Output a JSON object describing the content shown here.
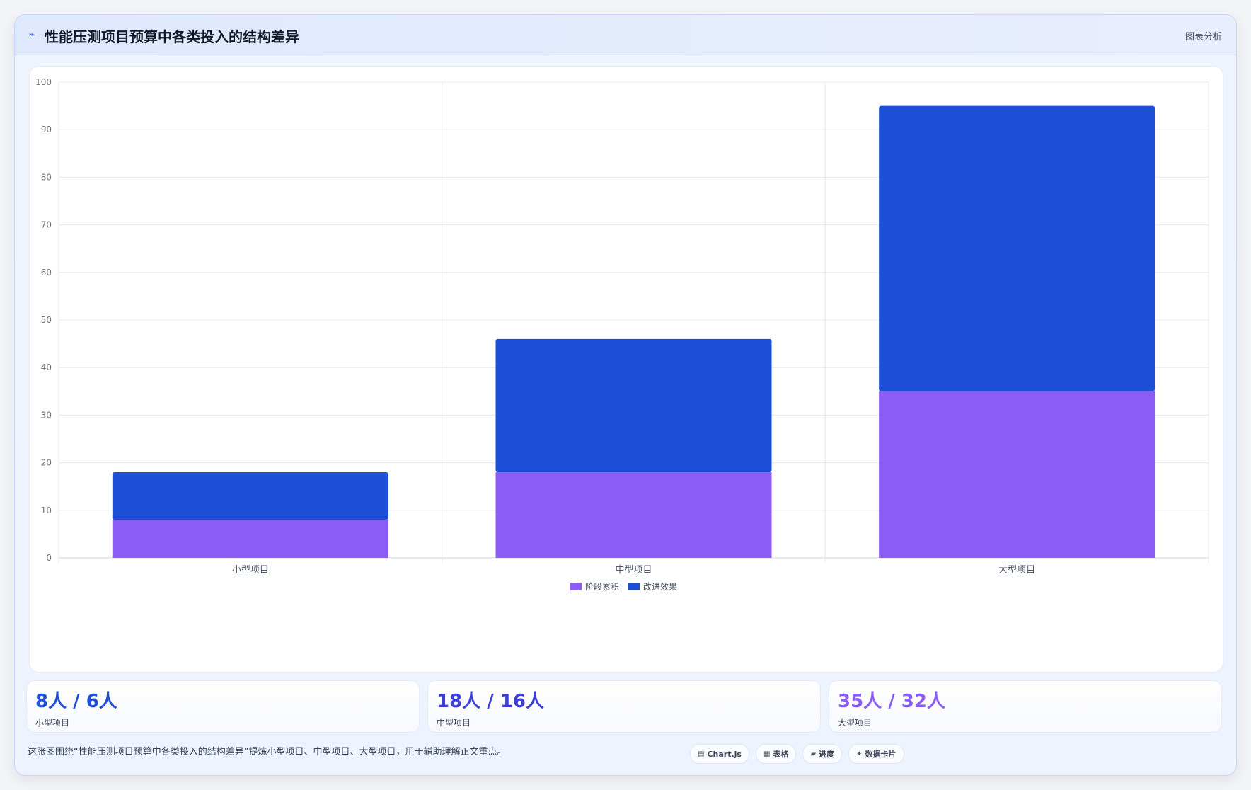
{
  "header": {
    "icon": "chart-line-icon",
    "title": "性能压测项目预算中各类投入的结构差异",
    "tag": "图表分析"
  },
  "chart_data": {
    "type": "bar",
    "stacked": true,
    "categories": [
      "小型项目",
      "中型项目",
      "大型项目"
    ],
    "series": [
      {
        "name": "阶段累积",
        "values": [
          8,
          18,
          35
        ],
        "color": "#8b5cf6"
      },
      {
        "name": "改进效果",
        "values": [
          10,
          28,
          60
        ],
        "color": "#1d4ed8"
      }
    ],
    "ylim": [
      0,
      100
    ],
    "yticks": [
      0,
      10,
      20,
      30,
      40,
      50,
      60,
      70,
      80,
      90,
      100
    ],
    "grid": true,
    "legend": "bottom-center"
  },
  "stats": [
    {
      "value": "8人 / 6人",
      "label": "小型项目",
      "color": "#1d4ed8"
    },
    {
      "value": "18人 / 16人",
      "label": "中型项目",
      "color": "#3b3fd8"
    },
    {
      "value": "35人 / 32人",
      "label": "大型项目",
      "color": "#8b5cf6"
    }
  ],
  "footer": {
    "note": "这张图围绕“性能压测项目预算中各类投入的结构差异”提炼小型项目、中型项目、大型项目，用于辅助理解正文重点。",
    "chips": [
      {
        "icon": "chart-icon",
        "glyph": "▤",
        "label": "Chart.js"
      },
      {
        "icon": "table-icon",
        "glyph": "▦",
        "label": "表格"
      },
      {
        "icon": "progress-icon",
        "glyph": "▰",
        "label": "进度"
      },
      {
        "icon": "sparkle-icon",
        "glyph": "✦",
        "label": "数据卡片"
      }
    ]
  }
}
